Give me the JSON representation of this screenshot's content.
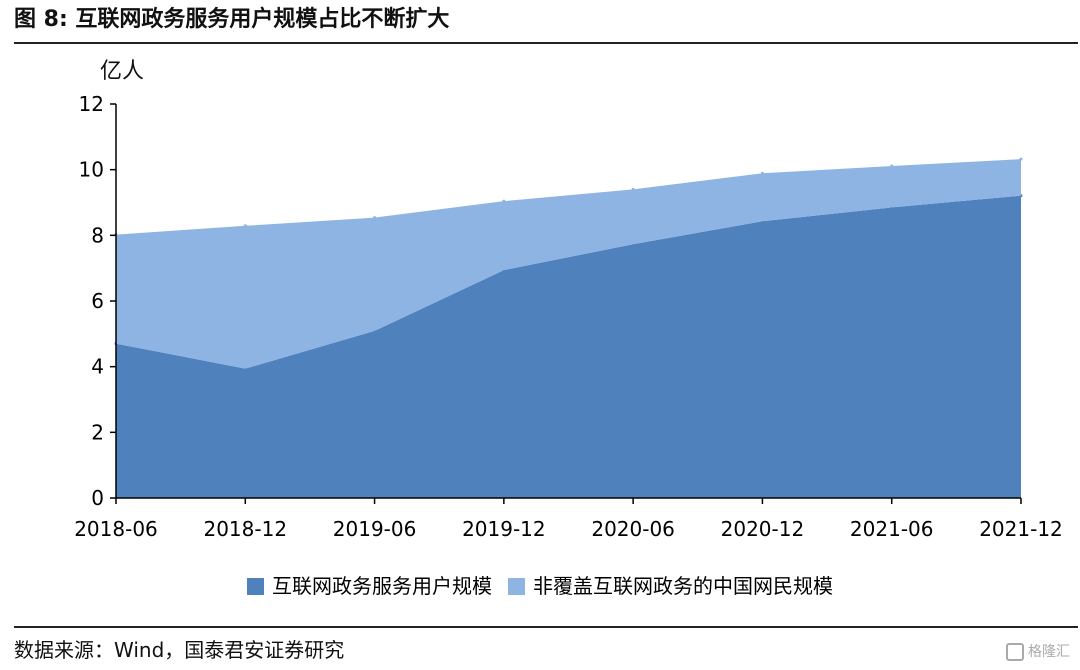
{
  "figure": {
    "title": "图 8: 互联网政务服务用户规模占比不断扩大",
    "source": "数据来源：Wind，国泰君安证券研究",
    "watermark": "格隆汇"
  },
  "chart_data": {
    "type": "area",
    "stacked": true,
    "title": "",
    "xlabel": "",
    "ylabel": "亿人",
    "ylim": [
      0,
      12
    ],
    "yticks": [
      "0",
      "2",
      "4",
      "6",
      "8",
      "10",
      "12"
    ],
    "categories": [
      "2018-06",
      "2018-12",
      "2019-06",
      "2019-12",
      "2020-06",
      "2020-12",
      "2021-06",
      "2021-12"
    ],
    "grid": false,
    "legend_position": "bottom",
    "series": [
      {
        "name": "互联网政务服务用户规模",
        "color": "#4f81bd",
        "values": [
          4.7,
          3.94,
          5.09,
          6.94,
          7.73,
          8.43,
          8.85,
          9.21
        ]
      },
      {
        "name": "非覆盖互联网政务的中国网民规模",
        "color": "#8eb4e3",
        "values": [
          3.32,
          4.35,
          3.45,
          2.1,
          1.67,
          1.46,
          1.26,
          1.11
        ]
      }
    ]
  }
}
